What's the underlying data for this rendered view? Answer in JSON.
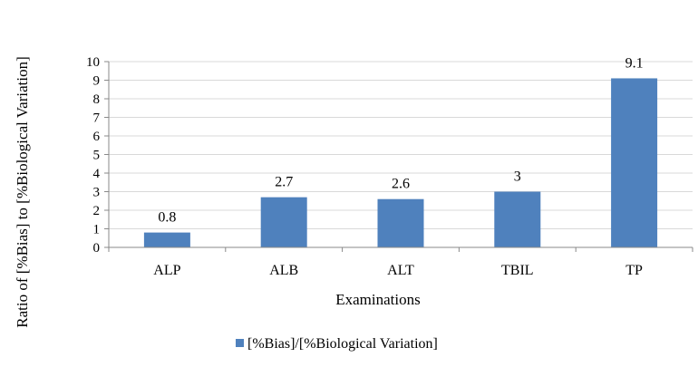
{
  "chart_data": {
    "type": "bar",
    "categories": [
      "ALP",
      "ALB",
      "ALT",
      "TBIL",
      "TP"
    ],
    "series": [
      {
        "name": "[%Bias]/[%Biological Variation]",
        "values": [
          0.8,
          2.7,
          2.6,
          3,
          9.1
        ],
        "data_labels": [
          "0.8",
          "2.7",
          "2.6",
          "3",
          "9.1"
        ],
        "color": "#4F81BD"
      }
    ],
    "xlabel": "Examinations",
    "ylabel": "Ratio of  [%Bias] to [%Biological Variation]",
    "ylim": [
      0,
      10
    ],
    "yticks": [
      0,
      1,
      2,
      3,
      4,
      5,
      6,
      7,
      8,
      9,
      10
    ],
    "grid": true,
    "legend_position": "bottom",
    "colors": {
      "bar": "#4F81BD",
      "grid": "#D9D9D9",
      "axis": "#898989"
    }
  }
}
